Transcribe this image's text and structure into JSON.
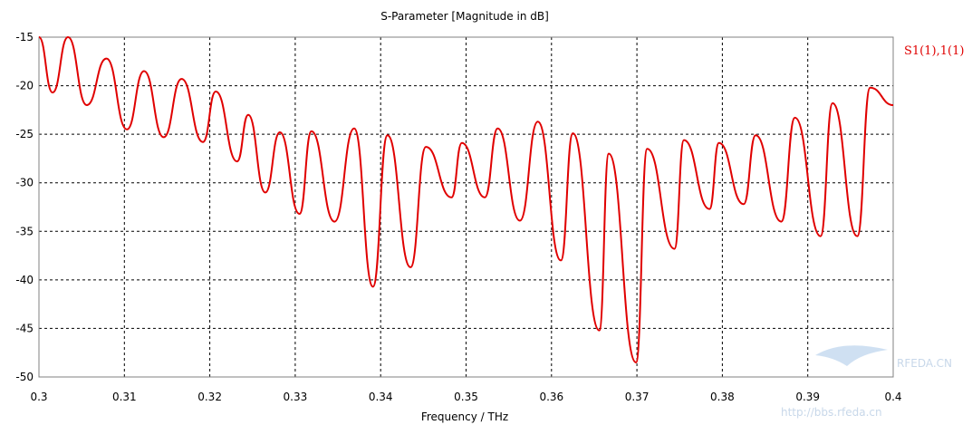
{
  "chart_data": {
    "type": "line",
    "title": "S-Parameter [Magnitude in dB]",
    "xlabel": "Frequency / THz",
    "ylabel": "",
    "xlim": [
      0.3,
      0.4
    ],
    "ylim": [
      -50,
      -15
    ],
    "grid": true,
    "legend_position": "right",
    "x_ticks": [
      "0.3",
      "0.31",
      "0.32",
      "0.33",
      "0.34",
      "0.35",
      "0.36",
      "0.37",
      "0.38",
      "0.39",
      "0.4"
    ],
    "y_ticks": [
      "-15",
      "-20",
      "-25",
      "-30",
      "-35",
      "-40",
      "-45",
      "-50"
    ],
    "x_tick_values": [
      0.3,
      0.31,
      0.32,
      0.33,
      0.34,
      0.35,
      0.36,
      0.37,
      0.38,
      0.39,
      0.4
    ],
    "y_tick_values": [
      -15,
      -20,
      -25,
      -30,
      -35,
      -40,
      -45,
      -50
    ],
    "series": [
      {
        "name": "S1(1),1(1)",
        "color": "#e00000",
        "x": [
          0.3,
          0.3016,
          0.3034,
          0.3056,
          0.3079,
          0.3103,
          0.3123,
          0.3146,
          0.3167,
          0.3192,
          0.3207,
          0.3232,
          0.3245,
          0.3265,
          0.3282,
          0.3305,
          0.3319,
          0.3346,
          0.3369,
          0.3391,
          0.3408,
          0.3435,
          0.3453,
          0.3483,
          0.3495,
          0.3522,
          0.3537,
          0.3563,
          0.3584,
          0.3611,
          0.3625,
          0.3656,
          0.3667,
          0.3699,
          0.3712,
          0.3744,
          0.3755,
          0.3785,
          0.3796,
          0.3825,
          0.3839,
          0.3869,
          0.3885,
          0.3915,
          0.3929,
          0.3958,
          0.3973,
          0.4
        ],
        "y": [
          -15,
          -20.7,
          -15,
          -22,
          -17.2,
          -24.5,
          -18.5,
          -25.3,
          -19.3,
          -25.8,
          -20.6,
          -27.8,
          -23,
          -31,
          -24.8,
          -33.2,
          -24.7,
          -34,
          -24.4,
          -40.7,
          -25.1,
          -38.7,
          -26.3,
          -31.5,
          -25.9,
          -31.5,
          -24.4,
          -33.9,
          -23.7,
          -38,
          -24.9,
          -45.2,
          -27,
          -48.5,
          -26.5,
          -36.8,
          -25.6,
          -32.7,
          -25.9,
          -32.2,
          -25.1,
          -34,
          -23.3,
          -35.5,
          -21.8,
          -35.5,
          -20.2,
          -22
        ]
      }
    ]
  },
  "watermark": {
    "brand": "RFEDA.CN",
    "url": "http://bbs.rfeda.cn"
  }
}
